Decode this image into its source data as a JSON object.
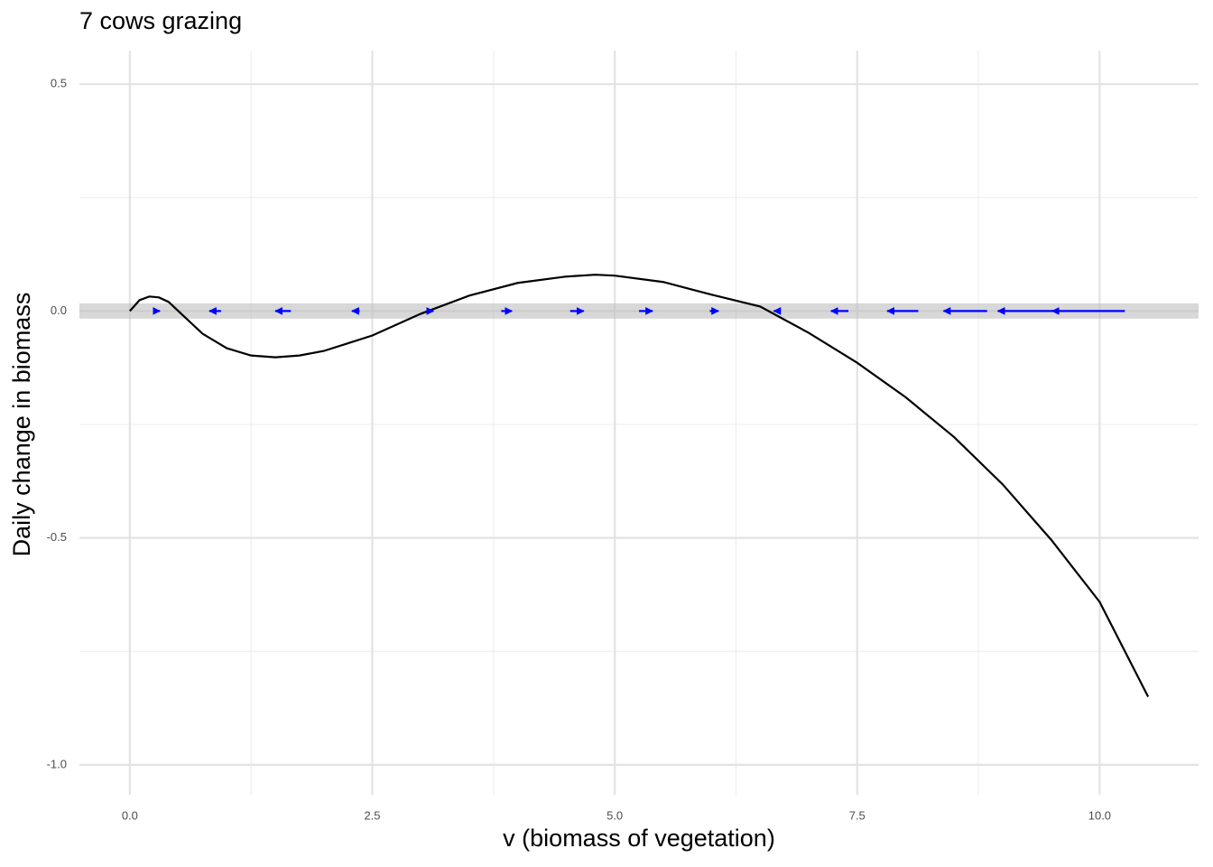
{
  "chart_data": {
    "type": "line",
    "title": "7 cows grazing",
    "xlabel": "v (biomass of vegetation)",
    "ylabel": "Daily change in biomass",
    "x": [
      0,
      0.1,
      0.2,
      0.3,
      0.4,
      0.5,
      0.75,
      1.0,
      1.25,
      1.5,
      1.75,
      2.0,
      2.5,
      3.0,
      3.5,
      4.0,
      4.5,
      4.8,
      5.0,
      5.5,
      6.0,
      6.5,
      7.0,
      7.5,
      8.0,
      8.5,
      9.0,
      9.5,
      10.0,
      10.5
    ],
    "series": [
      {
        "color": "#000000",
        "values": [
          0,
          0.024,
          0.032,
          0.03,
          0.02,
          0,
          -0.05,
          -0.082,
          -0.098,
          -0.102,
          -0.098,
          -0.088,
          -0.054,
          -0.006,
          0.034,
          0.062,
          0.076,
          0.08,
          0.078,
          0.064,
          0.036,
          0.01,
          -0.048,
          -0.114,
          -0.19,
          -0.278,
          -0.382,
          -0.504,
          -0.641,
          -0.85
        ]
      }
    ],
    "arrows": {
      "color": "#0000ff",
      "y": 0,
      "x": [
        0.25,
        0.94,
        1.66,
        2.37,
        3.08,
        3.83,
        4.54,
        5.25,
        5.98,
        6.68,
        7.41,
        8.13,
        8.84,
        9.54,
        10.26
      ],
      "xend": [
        0.31,
        0.82,
        1.5,
        2.29,
        3.13,
        3.94,
        4.68,
        5.39,
        6.07,
        6.64,
        7.23,
        7.81,
        8.39,
        8.95,
        9.51
      ]
    },
    "hline": {
      "y": 0,
      "color": "#bebebe"
    },
    "xlim": [
      -0.52,
      11.02
    ],
    "ylim": [
      -1.066,
      0.574
    ],
    "xticks": [
      {
        "value": 0,
        "label": "0.0"
      },
      {
        "value": 2.5,
        "label": "2.5"
      },
      {
        "value": 5,
        "label": "5.0"
      },
      {
        "value": 7.5,
        "label": "7.5"
      },
      {
        "value": 10,
        "label": "10.0"
      }
    ],
    "yticks": [
      {
        "value": 0.5,
        "label": "0.5"
      },
      {
        "value": 0,
        "label": "0.0"
      },
      {
        "value": -0.5,
        "label": "-0.5"
      },
      {
        "value": -1,
        "label": "-1.0"
      }
    ],
    "x_minor_grid": [
      1.25,
      3.75,
      6.25,
      8.75
    ],
    "y_minor_grid": [
      0.25,
      -0.25,
      -0.75
    ],
    "grid": true
  }
}
